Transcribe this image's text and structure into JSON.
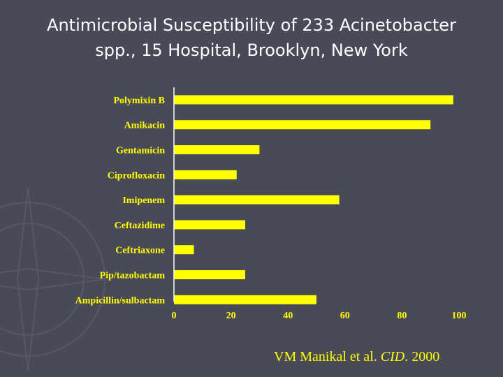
{
  "title": {
    "line1": "Antimicrobial Susceptibility of 233 Acinetobacter",
    "line2": "spp., 15 Hospital, Brooklyn, New York"
  },
  "citation": {
    "authors": "VM Manikal et al. ",
    "journal": "CID",
    "year": ". 2000"
  },
  "colors": {
    "background": "#484a58",
    "bar": "#ffff00",
    "label": "#ffff00",
    "axis": "#ffffff",
    "title": "#ffffff"
  },
  "chart_data": {
    "type": "bar",
    "orientation": "horizontal",
    "categories": [
      "Polymixin B",
      "Amikacin",
      "Gentamicin",
      "Ciprofloxacin",
      "Imipenem",
      "Ceftazidime",
      "Ceftriaxone",
      "Pip/tazobactam",
      "Ampicillin/sulbactam"
    ],
    "values": [
      98,
      90,
      30,
      22,
      58,
      25,
      7,
      25,
      50
    ],
    "xlim": [
      0,
      100
    ],
    "xticks": [
      0,
      20,
      40,
      60,
      80,
      100
    ],
    "grid": false,
    "legend": false
  }
}
